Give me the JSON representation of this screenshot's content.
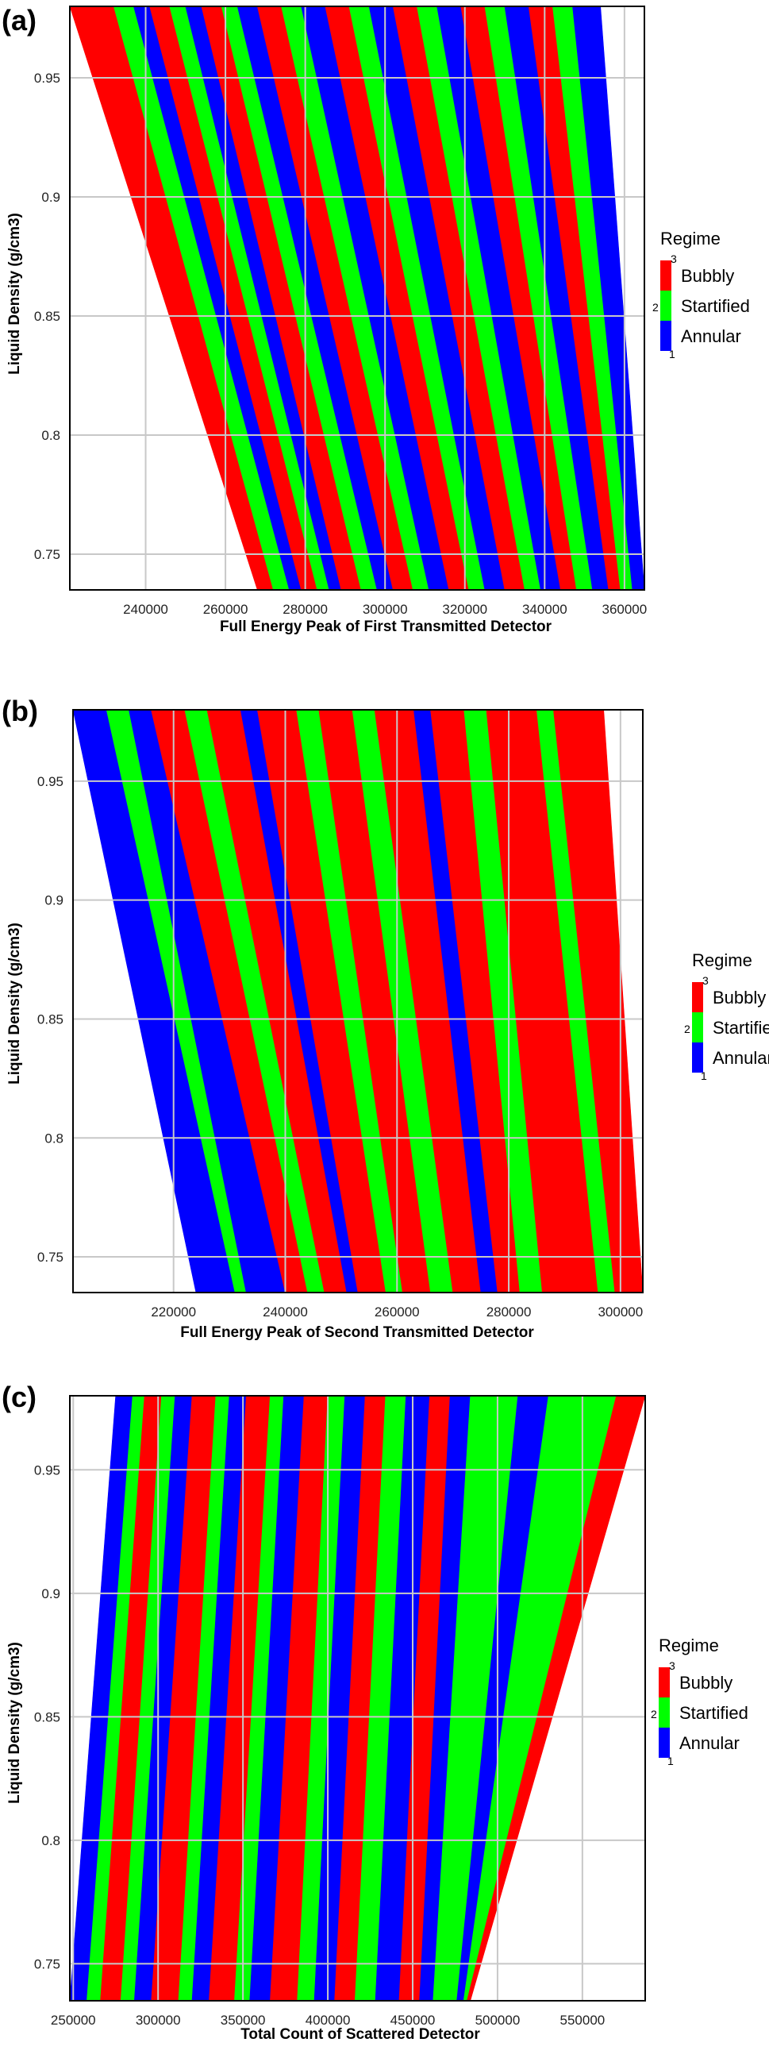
{
  "colors": {
    "bubbly": "#ff0000",
    "startified": "#00ff00",
    "annular": "#0000ff",
    "grid": "#c8c8c8"
  },
  "chart_data": [
    {
      "type": "heatmap",
      "panel_label": "(a)",
      "title": "",
      "xlabel": "Full Energy Peak of First Transmitted Detector",
      "ylabel": "Liquid Density (g/cm3)",
      "xlim": [
        221000,
        365000
      ],
      "ylim": [
        0.735,
        0.98
      ],
      "xticks": [
        240000,
        260000,
        280000,
        300000,
        320000,
        340000,
        360000
      ],
      "xtick_labels": [
        "240000",
        "260000",
        "280000",
        "300000",
        "320000",
        "340000",
        "360000"
      ],
      "yticks": [
        0.75,
        0.8,
        0.85,
        0.9,
        0.95
      ],
      "ytick_labels": [
        "0.75",
        "0.8",
        "0.85",
        "0.9",
        "0.95"
      ],
      "domain_edges": {
        "left": [
          [
            221000,
            0.98
          ],
          [
            268000,
            0.735
          ]
        ],
        "right": [
          [
            354000,
            0.98
          ],
          [
            365000,
            0.8
          ],
          [
            365000,
            0.735
          ]
        ]
      },
      "legend": {
        "title": "Regime",
        "entries": [
          {
            "label": "Bubbly",
            "value": "3"
          },
          {
            "label": "Startified",
            "value": "2"
          },
          {
            "label": "Annular",
            "value": "1"
          }
        ]
      },
      "bands": [
        {
          "regime": 3,
          "x_top": [
            221000,
            232000
          ],
          "x_bottom": [
            268000,
            272000
          ]
        },
        {
          "regime": 2,
          "x_top": [
            232000,
            237000
          ],
          "x_bottom": [
            272000,
            276000
          ]
        },
        {
          "regime": 1,
          "x_top": [
            237000,
            241000
          ],
          "x_bottom": [
            276000,
            279000
          ]
        },
        {
          "regime": 3,
          "x_top": [
            241000,
            246000
          ],
          "x_bottom": [
            279000,
            283000
          ]
        },
        {
          "regime": 2,
          "x_top": [
            246000,
            250000
          ],
          "x_bottom": [
            283000,
            286000
          ]
        },
        {
          "regime": 1,
          "x_top": [
            250000,
            254000
          ],
          "x_bottom": [
            286000,
            289000
          ]
        },
        {
          "regime": 3,
          "x_top": [
            254000,
            259000
          ],
          "x_bottom": [
            289000,
            294000
          ]
        },
        {
          "regime": 2,
          "x_top": [
            259000,
            263000
          ],
          "x_bottom": [
            294000,
            298000
          ]
        },
        {
          "regime": 1,
          "x_top": [
            263000,
            268000
          ],
          "x_bottom": [
            298000,
            302000
          ]
        },
        {
          "regime": 3,
          "x_top": [
            268000,
            274000
          ],
          "x_bottom": [
            302000,
            307000
          ]
        },
        {
          "regime": 2,
          "x_top": [
            274000,
            279000
          ],
          "x_bottom": [
            307000,
            311000
          ]
        },
        {
          "regime": 1,
          "x_top": [
            279000,
            285000
          ],
          "x_bottom": [
            311000,
            316000
          ]
        },
        {
          "regime": 3,
          "x_top": [
            285000,
            291000
          ],
          "x_bottom": [
            316000,
            321000
          ]
        },
        {
          "regime": 2,
          "x_top": [
            291000,
            296000
          ],
          "x_bottom": [
            321000,
            325000
          ]
        },
        {
          "regime": 1,
          "x_top": [
            296000,
            302000
          ],
          "x_bottom": [
            325000,
            330000
          ]
        },
        {
          "regime": 3,
          "x_top": [
            302000,
            308000
          ],
          "x_bottom": [
            330000,
            335000
          ]
        },
        {
          "regime": 2,
          "x_top": [
            308000,
            313000
          ],
          "x_bottom": [
            335000,
            339000
          ]
        },
        {
          "regime": 1,
          "x_top": [
            313000,
            319000
          ],
          "x_bottom": [
            339000,
            344000
          ]
        },
        {
          "regime": 3,
          "x_top": [
            319000,
            325000
          ],
          "x_bottom": [
            344000,
            348000
          ]
        },
        {
          "regime": 2,
          "x_top": [
            325000,
            330000
          ],
          "x_bottom": [
            348000,
            352000
          ]
        },
        {
          "regime": 1,
          "x_top": [
            330000,
            336000
          ],
          "x_bottom": [
            352000,
            356000
          ]
        },
        {
          "regime": 3,
          "x_top": [
            336000,
            342000
          ],
          "x_bottom": [
            356000,
            359000
          ]
        },
        {
          "regime": 2,
          "x_top": [
            342000,
            347000
          ],
          "x_bottom": [
            359000,
            362000
          ]
        },
        {
          "regime": 1,
          "x_top": [
            347000,
            354000
          ],
          "x_bottom": [
            362000,
            365000
          ]
        }
      ]
    },
    {
      "type": "heatmap",
      "panel_label": "(b)",
      "title": "",
      "xlabel": "Full Energy Peak of Second Transmitted Detector",
      "ylabel": "Liquid Density (g/cm3)",
      "xlim": [
        202000,
        304000
      ],
      "ylim": [
        0.735,
        0.98
      ],
      "xticks": [
        220000,
        240000,
        260000,
        280000,
        300000
      ],
      "xtick_labels": [
        "220000",
        "240000",
        "260000",
        "280000",
        "300000"
      ],
      "yticks": [
        0.75,
        0.8,
        0.85,
        0.9,
        0.95
      ],
      "ytick_labels": [
        "0.75",
        "0.8",
        "0.85",
        "0.9",
        "0.95"
      ],
      "domain_edges": {
        "left": [
          [
            202000,
            0.98
          ],
          [
            224000,
            0.735
          ]
        ],
        "right": [
          [
            297000,
            0.98
          ],
          [
            304000,
            0.79
          ],
          [
            304000,
            0.735
          ]
        ]
      },
      "legend": {
        "title": "Regime",
        "entries": [
          {
            "label": "Bubbly",
            "value": "3"
          },
          {
            "label": "Startified",
            "value": "2"
          },
          {
            "label": "Annular",
            "value": "1"
          }
        ]
      },
      "bands": [
        {
          "regime": 1,
          "x_top": [
            202000,
            208000
          ],
          "x_bottom": [
            224000,
            231000
          ]
        },
        {
          "regime": 2,
          "x_top": [
            208000,
            212000
          ],
          "x_bottom": [
            231000,
            233000
          ]
        },
        {
          "regime": 1,
          "x_top": [
            212000,
            216000
          ],
          "x_bottom": [
            233000,
            240000
          ]
        },
        {
          "regime": 3,
          "x_top": [
            216000,
            222000
          ],
          "x_bottom": [
            240000,
            244000
          ]
        },
        {
          "regime": 2,
          "x_top": [
            222000,
            226000
          ],
          "x_bottom": [
            244000,
            247000
          ]
        },
        {
          "regime": 3,
          "x_top": [
            226000,
            232000
          ],
          "x_bottom": [
            247000,
            251000
          ]
        },
        {
          "regime": 1,
          "x_top": [
            232000,
            235000
          ],
          "x_bottom": [
            251000,
            253000
          ]
        },
        {
          "regime": 3,
          "x_top": [
            235000,
            242000
          ],
          "x_bottom": [
            253000,
            258000
          ]
        },
        {
          "regime": 2,
          "x_top": [
            242000,
            246000
          ],
          "x_bottom": [
            258000,
            261000
          ]
        },
        {
          "regime": 3,
          "x_top": [
            246000,
            252000
          ],
          "x_bottom": [
            261000,
            266000
          ]
        },
        {
          "regime": 2,
          "x_top": [
            252000,
            256000
          ],
          "x_bottom": [
            266000,
            270000
          ]
        },
        {
          "regime": 3,
          "x_top": [
            256000,
            263000
          ],
          "x_bottom": [
            270000,
            275000
          ]
        },
        {
          "regime": 1,
          "x_top": [
            263000,
            266000
          ],
          "x_bottom": [
            275000,
            278000
          ]
        },
        {
          "regime": 3,
          "x_top": [
            266000,
            272000
          ],
          "x_bottom": [
            278000,
            282000
          ]
        },
        {
          "regime": 2,
          "x_top": [
            272000,
            276000
          ],
          "x_bottom": [
            282000,
            286000
          ]
        },
        {
          "regime": 3,
          "x_top": [
            276000,
            285000
          ],
          "x_bottom": [
            286000,
            296000
          ]
        },
        {
          "regime": 2,
          "x_top": [
            285000,
            288000
          ],
          "x_bottom": [
            296000,
            299000
          ]
        },
        {
          "regime": 3,
          "x_top": [
            288000,
            297000
          ],
          "x_bottom": [
            299000,
            304000
          ]
        }
      ]
    },
    {
      "type": "heatmap",
      "panel_label": "(c)",
      "title": "",
      "xlabel": "Total Count of Scattered Detector",
      "ylabel": "Liquid Density (g/cm3)",
      "xlim": [
        248000,
        587000
      ],
      "ylim": [
        0.735,
        0.98
      ],
      "xticks": [
        250000,
        300000,
        350000,
        400000,
        450000,
        500000,
        550000
      ],
      "xtick_labels": [
        "250000",
        "300000",
        "350000",
        "400000",
        "450000",
        "500000",
        "550000"
      ],
      "yticks": [
        0.75,
        0.8,
        0.85,
        0.9,
        0.95
      ],
      "ytick_labels": [
        "0.75",
        "0.8",
        "0.85",
        "0.9",
        "0.95"
      ],
      "domain_edges": {
        "left": [
          [
            275000,
            0.98
          ],
          [
            248000,
            0.735
          ]
        ],
        "right": [
          [
            587000,
            0.98
          ],
          [
            484000,
            0.735
          ]
        ]
      },
      "legend": {
        "title": "Regime",
        "entries": [
          {
            "label": "Bubbly",
            "value": "3"
          },
          {
            "label": "Startified",
            "value": "2"
          },
          {
            "label": "Annular",
            "value": "1"
          }
        ]
      },
      "bands": [
        {
          "regime": 1,
          "x_top": [
            275000,
            285000
          ],
          "x_bottom": [
            248000,
            258000
          ]
        },
        {
          "regime": 2,
          "x_top": [
            285000,
            292000
          ],
          "x_bottom": [
            258000,
            266000
          ]
        },
        {
          "regime": 3,
          "x_top": [
            292000,
            302000
          ],
          "x_bottom": [
            266000,
            278000
          ]
        },
        {
          "regime": 2,
          "x_top": [
            302000,
            310000
          ],
          "x_bottom": [
            278000,
            286000
          ]
        },
        {
          "regime": 1,
          "x_top": [
            310000,
            320000
          ],
          "x_bottom": [
            286000,
            296000
          ]
        },
        {
          "regime": 3,
          "x_top": [
            320000,
            334000
          ],
          "x_bottom": [
            296000,
            312000
          ]
        },
        {
          "regime": 2,
          "x_top": [
            334000,
            342000
          ],
          "x_bottom": [
            312000,
            320000
          ]
        },
        {
          "regime": 1,
          "x_top": [
            342000,
            352000
          ],
          "x_bottom": [
            320000,
            330000
          ]
        },
        {
          "regime": 3,
          "x_top": [
            352000,
            366000
          ],
          "x_bottom": [
            330000,
            345000
          ]
        },
        {
          "regime": 2,
          "x_top": [
            366000,
            374000
          ],
          "x_bottom": [
            345000,
            354000
          ]
        },
        {
          "regime": 1,
          "x_top": [
            374000,
            386000
          ],
          "x_bottom": [
            354000,
            366000
          ]
        },
        {
          "regime": 3,
          "x_top": [
            386000,
            400000
          ],
          "x_bottom": [
            366000,
            382000
          ]
        },
        {
          "regime": 2,
          "x_top": [
            400000,
            410000
          ],
          "x_bottom": [
            382000,
            392000
          ]
        },
        {
          "regime": 1,
          "x_top": [
            410000,
            422000
          ],
          "x_bottom": [
            392000,
            404000
          ]
        },
        {
          "regime": 3,
          "x_top": [
            422000,
            434000
          ],
          "x_bottom": [
            404000,
            416000
          ]
        },
        {
          "regime": 2,
          "x_top": [
            434000,
            446000
          ],
          "x_bottom": [
            416000,
            428000
          ]
        },
        {
          "regime": 1,
          "x_top": [
            446000,
            460000
          ],
          "x_bottom": [
            428000,
            442000
          ]
        },
        {
          "regime": 3,
          "x_top": [
            460000,
            472000
          ],
          "x_bottom": [
            442000,
            454000
          ]
        },
        {
          "regime": 1,
          "x_top": [
            472000,
            484000
          ],
          "x_bottom": [
            454000,
            462000
          ]
        },
        {
          "regime": 2,
          "x_top": [
            484000,
            512000
          ],
          "x_bottom": [
            462000,
            476000
          ]
        },
        {
          "regime": 1,
          "x_top": [
            512000,
            530000
          ],
          "x_bottom": [
            476000,
            480000
          ]
        },
        {
          "regime": 2,
          "x_top": [
            530000,
            570000
          ],
          "x_bottom": [
            480000,
            482000
          ]
        },
        {
          "regime": 3,
          "x_top": [
            570000,
            587000
          ],
          "x_bottom": [
            482000,
            484000
          ]
        }
      ]
    }
  ]
}
